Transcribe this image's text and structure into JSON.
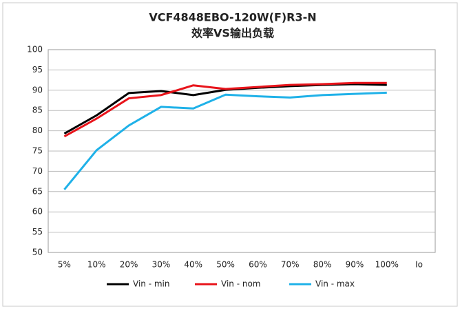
{
  "chart_data": {
    "type": "line",
    "title": [
      "VCF4848EBO-120W(F)R3-N",
      "效率VS输出负载"
    ],
    "categories": [
      "5%",
      "10%",
      "20%",
      "30%",
      "40%",
      "50%",
      "60%",
      "70%",
      "80%",
      "90%",
      "100%",
      "Io"
    ],
    "series": [
      {
        "name": "Vin - min",
        "color": "#000000",
        "values": [
          79.3,
          83.8,
          89.3,
          89.8,
          88.8,
          90.1,
          90.6,
          91.0,
          91.3,
          91.5,
          91.3,
          null
        ]
      },
      {
        "name": "Vin - nom",
        "color": "#e8141b",
        "values": [
          78.6,
          83.0,
          88.0,
          88.8,
          91.2,
          90.3,
          90.8,
          91.3,
          91.5,
          91.8,
          91.8,
          null
        ]
      },
      {
        "name": "Vin - max",
        "color": "#1fb1e8",
        "values": [
          65.5,
          75.2,
          81.3,
          85.9,
          85.5,
          88.9,
          88.5,
          88.2,
          88.8,
          89.1,
          89.4,
          null
        ]
      }
    ],
    "ylim": [
      50,
      100
    ],
    "yticks": [
      50,
      55,
      60,
      65,
      70,
      75,
      80,
      85,
      90,
      95,
      100
    ],
    "grid": true,
    "legend": "bottom"
  }
}
